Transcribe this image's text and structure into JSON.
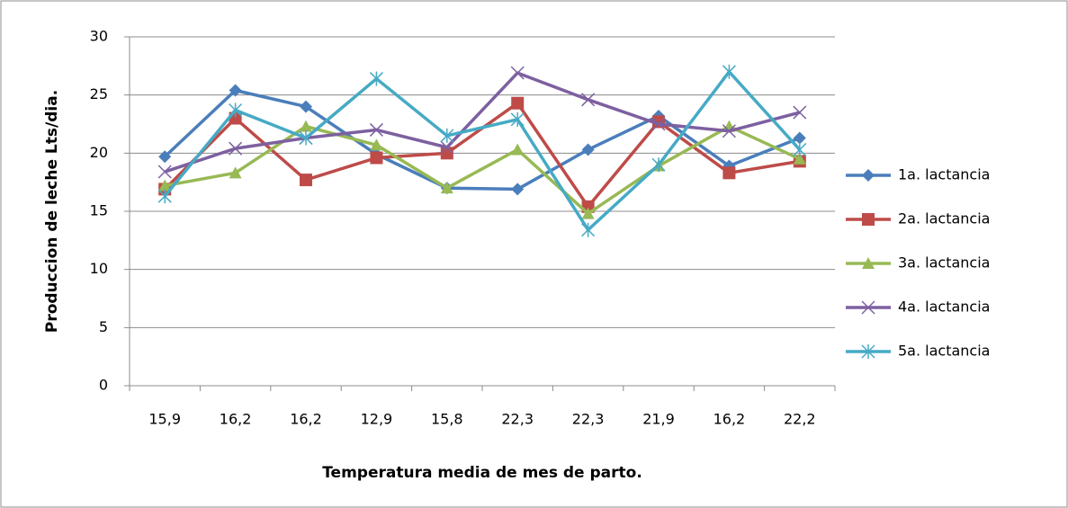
{
  "chart_data": {
    "type": "line",
    "x_label": "Temperatura  media de mes de parto.",
    "y_label": "Produccion de leche Lts/dia.",
    "categories": [
      "15,9",
      "16,2",
      "16,2",
      "12,9",
      "15,8",
      "22,3",
      "22,3",
      "21,9",
      "16,2",
      "22,2"
    ],
    "ylim": [
      0,
      30
    ],
    "yticks": [
      0,
      5,
      10,
      15,
      20,
      25,
      30
    ],
    "grid": true,
    "legend": "right",
    "series": [
      {
        "name": "1a. lactancia",
        "color": "#4a7ebb",
        "marker": "diamond",
        "values": [
          19.7,
          25.4,
          24.0,
          19.9,
          17.0,
          16.9,
          20.3,
          23.2,
          18.9,
          21.3
        ]
      },
      {
        "name": "2a. lactancia",
        "color": "#be4b48",
        "marker": "square",
        "values": [
          16.9,
          23.0,
          17.7,
          19.6,
          20.0,
          24.3,
          15.4,
          22.7,
          18.3,
          19.3
        ]
      },
      {
        "name": "3a. lactancia",
        "color": "#98b954",
        "marker": "triangle",
        "values": [
          17.2,
          18.3,
          22.3,
          20.7,
          17.0,
          20.3,
          14.8,
          18.9,
          22.3,
          19.5
        ]
      },
      {
        "name": "4a. lactancia",
        "color": "#7d60a0",
        "marker": "x",
        "values": [
          18.4,
          20.4,
          21.3,
          22.0,
          20.5,
          26.9,
          24.6,
          22.5,
          21.9,
          23.5
        ]
      },
      {
        "name": "5a. lactancia",
        "color": "#46aac5",
        "marker": "star",
        "values": [
          16.3,
          23.7,
          21.3,
          26.4,
          21.5,
          22.9,
          13.4,
          19.0,
          27.0,
          20.3
        ]
      }
    ]
  }
}
